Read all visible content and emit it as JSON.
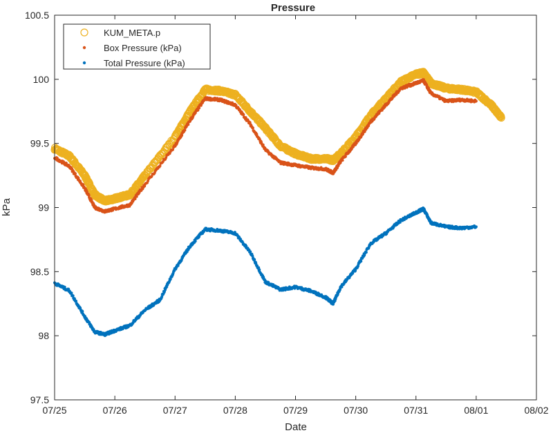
{
  "chart_data": {
    "type": "scatter",
    "title": "Pressure",
    "xlabel": "Date",
    "ylabel": "kPa",
    "ylim": [
      97.5,
      100.5
    ],
    "xlim": [
      "07/25",
      "08/02"
    ],
    "x_ticks": [
      "07/25",
      "07/26",
      "07/27",
      "07/28",
      "07/29",
      "07/30",
      "07/31",
      "08/01",
      "08/02"
    ],
    "y_ticks": [
      "97.5",
      "98",
      "98.5",
      "99",
      "99.5",
      "100",
      "100.5"
    ],
    "legend_position": "top-left",
    "grid": false,
    "series": [
      {
        "name": "KUM_META.p",
        "marker": "open-circle",
        "color": "#EDB120",
        "x": [
          "07/25 00:00",
          "07/25 06:00",
          "07/25 12:00",
          "07/25 16:00",
          "07/25 20:00",
          "07/26 00:00",
          "07/26 06:00",
          "07/26 12:00",
          "07/27 00:00",
          "07/27 06:00",
          "07/27 12:00",
          "07/27 18:00",
          "07/28 00:00",
          "07/28 06:00",
          "07/28 12:00",
          "07/28 18:00",
          "07/29 00:00",
          "07/29 06:00",
          "07/29 12:00",
          "07/29 15:00",
          "07/29 18:00",
          "07/30 00:00",
          "07/30 06:00",
          "07/30 12:00",
          "07/30 18:00",
          "07/31 00:00",
          "07/31 03:00",
          "07/31 06:00",
          "07/31 12:00",
          "07/31 18:00",
          "08/01 00:00",
          "08/01 06:00",
          "08/01 10:00"
        ],
        "y": [
          99.46,
          99.4,
          99.25,
          99.1,
          99.05,
          99.07,
          99.1,
          99.25,
          99.55,
          99.75,
          99.92,
          99.91,
          99.88,
          99.75,
          99.62,
          99.48,
          99.42,
          99.38,
          99.38,
          99.37,
          99.42,
          99.55,
          99.72,
          99.85,
          99.98,
          100.04,
          100.05,
          99.97,
          99.93,
          99.92,
          99.9,
          99.8,
          99.7
        ]
      },
      {
        "name": "Box Pressure (kPa)",
        "marker": "dot",
        "color": "#D95319",
        "x": [
          "07/25 00:00",
          "07/25 06:00",
          "07/25 12:00",
          "07/25 16:00",
          "07/25 20:00",
          "07/26 00:00",
          "07/26 06:00",
          "07/26 12:00",
          "07/27 00:00",
          "07/27 06:00",
          "07/27 12:00",
          "07/27 18:00",
          "07/28 00:00",
          "07/28 06:00",
          "07/28 12:00",
          "07/28 18:00",
          "07/29 00:00",
          "07/29 06:00",
          "07/29 12:00",
          "07/29 15:00",
          "07/29 18:00",
          "07/30 00:00",
          "07/30 06:00",
          "07/30 12:00",
          "07/30 18:00",
          "07/31 00:00",
          "07/31 03:00",
          "07/31 06:00",
          "07/31 12:00",
          "07/31 18:00",
          "08/01 00:00"
        ],
        "y": [
          99.39,
          99.32,
          99.15,
          99.0,
          98.97,
          98.99,
          99.02,
          99.18,
          99.48,
          99.68,
          99.85,
          99.84,
          99.8,
          99.65,
          99.45,
          99.35,
          99.33,
          99.31,
          99.3,
          99.27,
          99.36,
          99.5,
          99.67,
          99.8,
          99.93,
          99.97,
          99.99,
          99.89,
          99.83,
          99.84,
          99.83
        ]
      },
      {
        "name": "Total Pressure (kPa)",
        "marker": "dot",
        "color": "#0072BD",
        "x": [
          "07/25 00:00",
          "07/25 06:00",
          "07/25 12:00",
          "07/25 16:00",
          "07/25 20:00",
          "07/26 00:00",
          "07/26 06:00",
          "07/26 12:00",
          "07/26 18:00",
          "07/27 00:00",
          "07/27 06:00",
          "07/27 12:00",
          "07/27 18:00",
          "07/28 00:00",
          "07/28 06:00",
          "07/28 12:00",
          "07/28 18:00",
          "07/29 00:00",
          "07/29 06:00",
          "07/29 12:00",
          "07/29 15:00",
          "07/29 18:00",
          "07/30 00:00",
          "07/30 06:00",
          "07/30 12:00",
          "07/30 18:00",
          "07/31 00:00",
          "07/31 03:00",
          "07/31 06:00",
          "07/31 12:00",
          "07/31 18:00",
          "08/01 00:00"
        ],
        "y": [
          98.41,
          98.35,
          98.15,
          98.03,
          98.01,
          98.04,
          98.08,
          98.2,
          98.28,
          98.52,
          98.7,
          98.83,
          98.82,
          98.8,
          98.65,
          98.42,
          98.36,
          98.38,
          98.35,
          98.3,
          98.25,
          98.38,
          98.52,
          98.72,
          98.8,
          98.9,
          98.96,
          98.99,
          98.88,
          98.85,
          98.84,
          98.85
        ]
      }
    ]
  }
}
